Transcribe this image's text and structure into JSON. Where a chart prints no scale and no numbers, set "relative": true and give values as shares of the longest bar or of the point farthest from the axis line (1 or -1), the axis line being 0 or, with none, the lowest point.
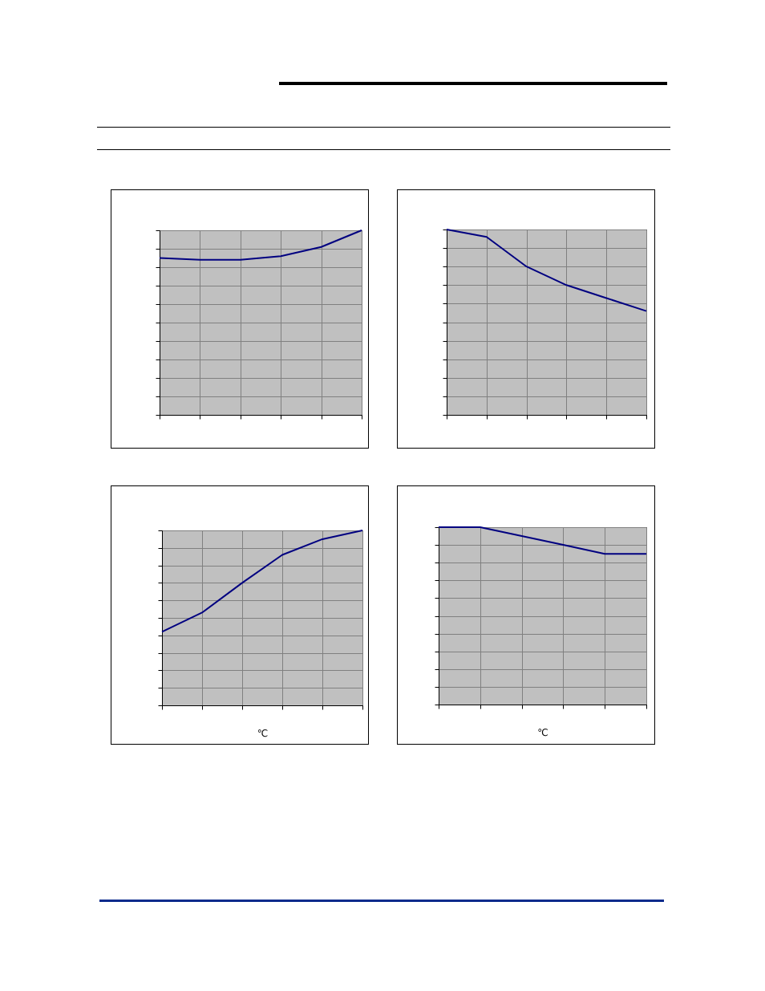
{
  "chart_data": [
    {
      "type": "line",
      "relative": true,
      "grid": true,
      "categories": [
        null,
        null,
        null,
        null,
        null,
        null
      ],
      "series": [
        {
          "color": "#000080",
          "values": [
            0.85,
            0.84,
            0.84,
            0.86,
            0.91,
            1.0
          ]
        }
      ]
    },
    {
      "type": "line",
      "relative": true,
      "grid": true,
      "categories": [
        null,
        null,
        null,
        null,
        null,
        null
      ],
      "series": [
        {
          "color": "#000080",
          "values": [
            1.0,
            0.96,
            0.8,
            0.7,
            0.63,
            0.56
          ]
        }
      ]
    },
    {
      "type": "line",
      "relative": true,
      "grid": true,
      "xlabel": "℃",
      "categories": [
        null,
        null,
        null,
        null,
        null,
        null
      ],
      "series": [
        {
          "color": "#000080",
          "values": [
            0.42,
            0.53,
            0.7,
            0.86,
            0.95,
            1.0
          ]
        }
      ]
    },
    {
      "type": "line",
      "relative": true,
      "grid": true,
      "xlabel": "℃",
      "categories": [
        null,
        null,
        null,
        null,
        null,
        null
      ],
      "series": [
        {
          "color": "#000080",
          "values": [
            1.0,
            1.0,
            0.95,
            0.9,
            0.85,
            0.85
          ]
        }
      ]
    }
  ]
}
